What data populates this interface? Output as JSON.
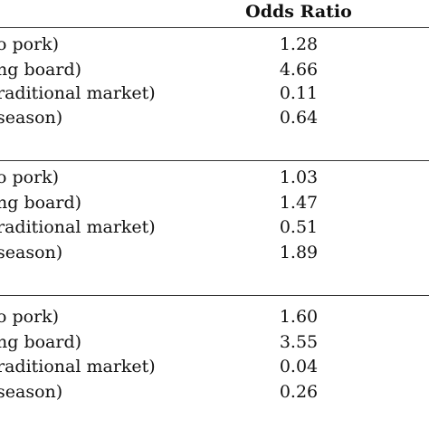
{
  "table": {
    "column_header": "Odds Ratio",
    "groups": [
      {
        "rows": [
          {
            "label": "o pork)",
            "value": "1.28"
          },
          {
            "label": "ng board)",
            "value": "4.66"
          },
          {
            "label": "raditional market)",
            "value": "0.11"
          },
          {
            "label": " season)",
            "value": "0.64"
          }
        ]
      },
      {
        "rows": [
          {
            "label": "o pork)",
            "value": "1.03"
          },
          {
            "label": "ng board)",
            "value": "1.47"
          },
          {
            "label": "raditional market)",
            "value": "0.51"
          },
          {
            "label": " season)",
            "value": "1.89"
          }
        ]
      },
      {
        "rows": [
          {
            "label": "o pork)",
            "value": "1.60"
          },
          {
            "label": "ng board)",
            "value": "3.55"
          },
          {
            "label": "raditional market)",
            "value": "0.04"
          },
          {
            "label": " season)",
            "value": "0.26"
          }
        ]
      }
    ]
  }
}
